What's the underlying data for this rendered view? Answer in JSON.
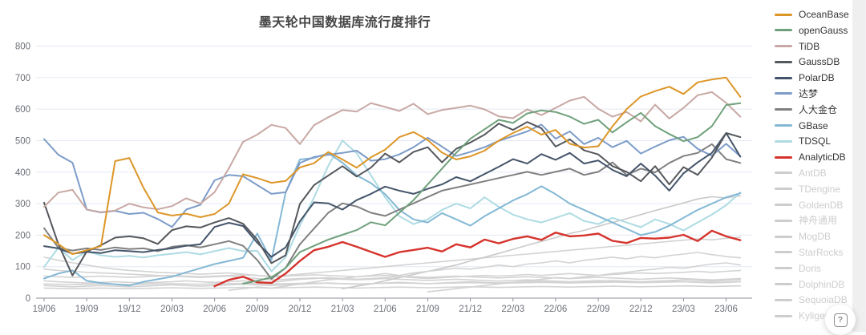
{
  "title": {
    "text": "墨天轮中国数据库流行度排行"
  },
  "help_button": {
    "icon": "?"
  },
  "colors": {
    "grid": "#e3e9f3",
    "axis": "#8d9299",
    "tick_label": "#6e7079",
    "disabled_series": "#d3d3d3"
  },
  "chart_data": {
    "type": "line",
    "title": "墨天轮中国数据库流行度排行",
    "legend_position": "right",
    "grid": true,
    "x_axis": {
      "n_points": 50,
      "tick_every": 3,
      "tick_labels": [
        "19/06",
        "19/09",
        "19/12",
        "20/03",
        "20/06",
        "20/09",
        "20/12",
        "21/03",
        "21/06",
        "21/09",
        "21/12",
        "22/03",
        "22/06",
        "22/09",
        "22/12",
        "23/03",
        "23/06"
      ]
    },
    "y_axis": {
      "min": 0,
      "max": 800,
      "ticks": [
        0,
        100,
        200,
        300,
        400,
        500,
        600,
        700,
        800
      ]
    },
    "series": [
      {
        "id": "oceanbase",
        "name": "OceanBase",
        "color": "#dc9628",
        "active": true,
        "start": 0,
        "values": [
          200,
          172,
          140,
          152,
          165,
          435,
          445,
          350,
          272,
          262,
          268,
          257,
          267,
          300,
          393,
          381,
          366,
          372,
          415,
          428,
          464,
          440,
          414,
          447,
          471,
          511,
          527,
          502,
          462,
          440,
          450,
          468,
          500,
          524,
          544,
          519,
          534,
          490,
          478,
          482,
          545,
          600,
          640,
          657,
          671,
          648,
          685,
          694,
          700,
          639
        ]
      },
      {
        "id": "opengauss",
        "name": "openGauss",
        "color": "#6fa07b",
        "active": true,
        "start": 14,
        "values": [
          46,
          55,
          66,
          96,
          146,
          166,
          186,
          201,
          216,
          241,
          231,
          271,
          311,
          361,
          411,
          461,
          506,
          536,
          566,
          556,
          586,
          596,
          591,
          576,
          553,
          566,
          526,
          558,
          588,
          546,
          521,
          498,
          511,
          546,
          613,
          619
        ]
      },
      {
        "id": "tidb",
        "name": "TiDB",
        "color": "#c8a8a4",
        "active": true,
        "start": 0,
        "values": [
          290,
          335,
          344,
          281,
          273,
          278,
          300,
          288,
          282,
          292,
          317,
          300,
          336,
          412,
          496,
          519,
          550,
          540,
          489,
          549,
          574,
          597,
          592,
          619,
          607,
          594,
          617,
          584,
          597,
          604,
          611,
          599,
          577,
          571,
          599,
          581,
          604,
          627,
          639,
          601,
          576,
          591,
          561,
          614,
          570,
          604,
          644,
          654,
          620,
          576
        ]
      },
      {
        "id": "gaussdb",
        "name": "GaussDB",
        "color": "#54575c",
        "active": true,
        "start": 0,
        "values": [
          303,
          172,
          72,
          148,
          168,
          192,
          196,
          190,
          172,
          216,
          228,
          224,
          240,
          254,
          236,
          186,
          111,
          136,
          299,
          359,
          389,
          419,
          386,
          414,
          459,
          431,
          464,
          479,
          431,
          474,
          494,
          519,
          554,
          534,
          559,
          539,
          481,
          504,
          469,
          456,
          419,
          401,
          371,
          419,
          361,
          416,
          391,
          446,
          524,
          511
        ]
      },
      {
        "id": "polardb",
        "name": "PolarDB",
        "color": "#44546a",
        "active": true,
        "start": 0,
        "values": [
          165,
          158,
          141,
          147,
          143,
          152,
          149,
          146,
          153,
          158,
          166,
          171,
          226,
          239,
          229,
          176,
          131,
          161,
          244,
          304,
          301,
          281,
          311,
          331,
          354,
          341,
          331,
          347,
          361,
          384,
          371,
          394,
          417,
          441,
          427,
          457,
          439,
          461,
          427,
          437,
          407,
          387,
          427,
          389,
          341,
          396,
          431,
          461,
          524,
          449
        ]
      },
      {
        "id": "dameng",
        "name": "达梦",
        "color": "#7d9cc9",
        "active": true,
        "start": 0,
        "values": [
          505,
          455,
          430,
          281,
          272,
          277,
          267,
          271,
          251,
          226,
          281,
          296,
          374,
          391,
          387,
          359,
          331,
          336,
          429,
          448,
          455,
          461,
          468,
          436,
          441,
          456,
          479,
          509,
          481,
          451,
          464,
          479,
          499,
          514,
          529,
          551,
          506,
          529,
          489,
          509,
          479,
          499,
          459,
          481,
          501,
          512,
          474,
          452,
          490,
          450
        ]
      },
      {
        "id": "rendajincang",
        "name": "人大金仓",
        "color": "#808080",
        "active": true,
        "start": 0,
        "values": [
          222,
          160,
          151,
          158,
          153,
          161,
          156,
          158,
          149,
          163,
          168,
          161,
          171,
          181,
          166,
          121,
          61,
          96,
          171,
          221,
          271,
          301,
          291,
          271,
          261,
          281,
          301,
          321,
          341,
          351,
          361,
          371,
          381,
          391,
          401,
          391,
          401,
          411,
          391,
          401,
          431,
          391,
          411,
          399,
          429,
          451,
          461,
          489,
          441,
          429
        ]
      },
      {
        "id": "gbase",
        "name": "GBase",
        "color": "#83b8d5",
        "active": true,
        "start": 0,
        "values": [
          62,
          78,
          88,
          55,
          48,
          44,
          40,
          52,
          60,
          68,
          82,
          95,
          108,
          118,
          128,
          205,
          120,
          335,
          440,
          445,
          460,
          430,
          390,
          365,
          330,
          280,
          250,
          240,
          270,
          250,
          230,
          260,
          285,
          310,
          330,
          355,
          330,
          300,
          280,
          260,
          240,
          220,
          200,
          210,
          230,
          255,
          280,
          300,
          320,
          333
        ]
      },
      {
        "id": "tdsql",
        "name": "TDSQL",
        "color": "#aedbe3",
        "active": true,
        "start": 0,
        "values": [
          99,
          160,
          121,
          148,
          136,
          131,
          134,
          129,
          136,
          141,
          146,
          139,
          149,
          159,
          149,
          150,
          85,
          130,
          230,
          320,
          420,
          500,
          460,
          390,
          320,
          260,
          235,
          250,
          280,
          300,
          285,
          320,
          290,
          265,
          250,
          240,
          255,
          270,
          245,
          235,
          255,
          240,
          225,
          250,
          235,
          215,
          240,
          265,
          295,
          335
        ]
      },
      {
        "id": "analyticdb",
        "name": "AnalyticDB",
        "color": "#d6332c",
        "active": true,
        "start": 12,
        "values": [
          38,
          58,
          68,
          50,
          48,
          78,
          118,
          152,
          163,
          178,
          163,
          147,
          131,
          146,
          153,
          160,
          148,
          171,
          161,
          186,
          174,
          188,
          196,
          185,
          208,
          196,
          199,
          205,
          182,
          175,
          191,
          189,
          192,
          201,
          181,
          214,
          196,
          184
        ]
      },
      {
        "id": "antdb",
        "name": "AntDB",
        "color": "#d3d3d3",
        "active": false,
        "start": 0,
        "values": [
          55,
          52,
          50,
          48,
          50,
          52,
          50,
          48,
          50,
          52,
          55,
          52,
          50,
          52,
          55,
          52,
          50,
          55,
          60,
          62,
          65,
          62,
          60,
          62,
          65,
          68,
          65,
          62,
          65,
          68,
          70,
          72,
          70,
          72,
          75,
          72,
          75,
          78,
          75,
          72,
          75,
          78,
          80,
          78,
          80,
          82,
          85,
          82,
          85,
          88
        ]
      },
      {
        "id": "tdengine",
        "name": "TDengine",
        "color": "#d3d3d3",
        "active": false,
        "start": 13,
        "values": [
          25,
          30,
          35,
          32,
          38,
          45,
          52,
          58,
          62,
          68,
          72,
          78,
          72,
          80,
          85,
          90,
          95,
          92,
          98,
          105,
          100,
          108,
          112,
          118,
          112,
          120,
          125,
          130,
          125,
          132,
          128,
          135,
          140,
          145,
          138,
          132,
          128
        ]
      },
      {
        "id": "goldendb",
        "name": "GoldenDB",
        "color": "#d3d3d3",
        "active": false,
        "start": 0,
        "values": [
          40,
          38,
          36,
          38,
          40,
          38,
          36,
          38,
          40,
          42,
          40,
          38,
          40,
          42,
          44,
          42,
          40,
          42,
          44,
          46,
          48,
          46,
          44,
          46,
          48,
          50,
          48,
          46,
          48,
          50,
          52,
          50,
          48,
          50,
          52,
          54,
          52,
          50,
          52,
          54,
          56,
          54,
          52,
          54,
          56,
          58,
          56,
          54,
          56,
          58
        ]
      },
      {
        "id": "shenzhoutongyong",
        "name": "神舟通用",
        "color": "#d3d3d3",
        "active": false,
        "start": 0,
        "values": [
          130,
          120,
          112,
          105,
          98,
          92,
          88,
          85,
          82,
          80,
          78,
          76,
          78,
          80,
          76,
          72,
          68,
          70,
          72,
          74,
          72,
          70,
          68,
          70,
          72,
          70,
          68,
          66,
          68,
          70,
          68,
          66,
          64,
          66,
          68,
          66,
          64,
          62,
          64,
          66,
          64,
          62,
          60,
          62,
          64,
          62,
          60,
          58,
          60,
          62
        ]
      },
      {
        "id": "mogdb",
        "name": "MogDB",
        "color": "#d3d3d3",
        "active": false,
        "start": 27,
        "values": [
          20,
          25,
          30,
          35,
          40,
          45,
          50,
          55,
          60,
          65,
          62,
          68,
          72,
          78,
          82,
          88,
          92,
          98,
          95,
          102,
          108,
          112,
          105
        ]
      },
      {
        "id": "starrocks",
        "name": "StarRocks",
        "color": "#c9c9c9",
        "active": false,
        "start": 21,
        "values": [
          30,
          38,
          45,
          55,
          65,
          75,
          85,
          95,
          105,
          118,
          130,
          142,
          155,
          168,
          180,
          192,
          205,
          215,
          228,
          240,
          252,
          265,
          278,
          290,
          302,
          315,
          322,
          318,
          325
        ]
      },
      {
        "id": "doris",
        "name": "Doris",
        "color": "#d3d3d3",
        "active": false,
        "start": 0,
        "values": [
          70,
          68,
          66,
          68,
          70,
          68,
          66,
          68,
          70,
          72,
          70,
          68,
          70,
          72,
          74,
          72,
          70,
          72,
          76,
          80,
          84,
          88,
          92,
          96,
          100,
          104,
          108,
          112,
          116,
          120,
          124,
          128,
          132,
          136,
          140,
          144,
          148,
          152,
          156,
          160,
          164,
          168,
          172,
          176,
          180,
          184,
          188,
          185,
          190,
          193
        ]
      },
      {
        "id": "dolphindb",
        "name": "DolphinDB",
        "color": "#d3d3d3",
        "active": false,
        "start": 0,
        "values": [
          45,
          44,
          43,
          44,
          45,
          44,
          43,
          44,
          45,
          46,
          45,
          44,
          45,
          46,
          47,
          46,
          45,
          46,
          47,
          48,
          47,
          46,
          45,
          46,
          47,
          48,
          47,
          46,
          47,
          48,
          49,
          48,
          47,
          48,
          49,
          50,
          49,
          48,
          49,
          50,
          51,
          50,
          49,
          50,
          51,
          52,
          51,
          50,
          51,
          52
        ]
      },
      {
        "id": "sequoiadb",
        "name": "SequoiaDB",
        "color": "#d3d3d3",
        "active": false,
        "start": 0,
        "values": [
          92,
          88,
          85,
          82,
          80,
          78,
          76,
          74,
          72,
          70,
          68,
          66,
          68,
          70,
          66,
          62,
          58,
          60,
          62,
          64,
          62,
          60,
          58,
          60,
          62,
          60,
          58,
          56,
          58,
          60,
          58,
          56,
          54,
          56,
          58,
          56,
          54,
          52,
          54,
          56,
          54,
          52,
          50,
          52,
          54,
          52,
          50,
          48,
          50,
          52
        ]
      },
      {
        "id": "kyligence",
        "name": "Kyligence",
        "color": "#d3d3d3",
        "active": false,
        "start": 0,
        "values": [
          32,
          31,
          30,
          31,
          32,
          31,
          30,
          31,
          32,
          33,
          32,
          31,
          32,
          33,
          34,
          33,
          32,
          33,
          34,
          35,
          34,
          33,
          32,
          33,
          34,
          35,
          34,
          33,
          34,
          35,
          36,
          35,
          34,
          35,
          36,
          37,
          36,
          35,
          36,
          37,
          38,
          37,
          36,
          37,
          38,
          39,
          38,
          37,
          38,
          39
        ]
      }
    ]
  }
}
